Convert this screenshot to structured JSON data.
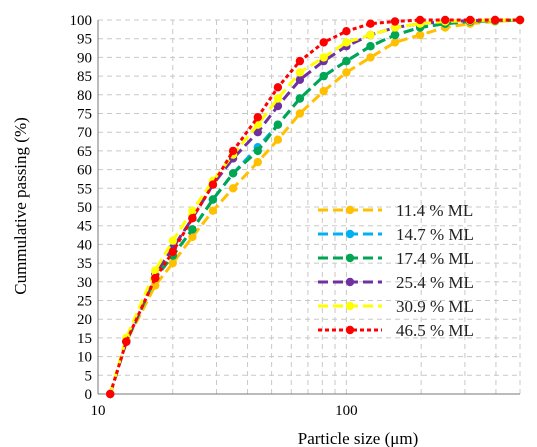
{
  "chart_data": {
    "type": "line",
    "title": "",
    "xlabel": "Particle size (μm)",
    "ylabel": "Cummulative passing (%)",
    "x_scale": "log",
    "xlim": [
      10,
      500
    ],
    "ylim": [
      0,
      100
    ],
    "x_ticks": [
      "10",
      "100"
    ],
    "y_ticks": [
      "0",
      "5",
      "10",
      "15",
      "20",
      "25",
      "30",
      "35",
      "40",
      "45",
      "50",
      "55",
      "60",
      "65",
      "70",
      "75",
      "80",
      "85",
      "90",
      "95",
      "100"
    ],
    "grid": true,
    "legend_position": "right-bottom",
    "series": [
      {
        "name": "11.4 % ML",
        "color": "#FFC000",
        "dash": "dashed",
        "points": [
          [
            11.2,
            0
          ],
          [
            13,
            14
          ],
          [
            17,
            29
          ],
          [
            20,
            35
          ],
          [
            24,
            42
          ],
          [
            29,
            49
          ],
          [
            35,
            55
          ],
          [
            44,
            62
          ],
          [
            53,
            68
          ],
          [
            65,
            75
          ],
          [
            81,
            81
          ],
          [
            100,
            86
          ],
          [
            125,
            90
          ],
          [
            157,
            94
          ],
          [
            198,
            96
          ],
          [
            250,
            98
          ],
          [
            315,
            99
          ],
          [
            397,
            99.6
          ],
          [
            500,
            100
          ]
        ]
      },
      {
        "name": "14.7 % ML",
        "color": "#00B0F0",
        "dash": "dashed",
        "points": [
          [
            11.2,
            0
          ],
          [
            13,
            14
          ],
          [
            17,
            31
          ],
          [
            20,
            37
          ],
          [
            24,
            44
          ],
          [
            29,
            52
          ],
          [
            35,
            59
          ],
          [
            44,
            66
          ],
          [
            53,
            72
          ],
          [
            65,
            79
          ],
          [
            81,
            85
          ],
          [
            100,
            89
          ],
          [
            125,
            93
          ],
          [
            157,
            96
          ],
          [
            198,
            98
          ],
          [
            250,
            99
          ],
          [
            315,
            99.6
          ],
          [
            397,
            99.8
          ],
          [
            500,
            100
          ]
        ]
      },
      {
        "name": "17.4 % ML",
        "color": "#00A651",
        "dash": "dashed",
        "points": [
          [
            11.2,
            0
          ],
          [
            13,
            14
          ],
          [
            17,
            31
          ],
          [
            20,
            37
          ],
          [
            24,
            44
          ],
          [
            29,
            52
          ],
          [
            35,
            59
          ],
          [
            44,
            65
          ],
          [
            53,
            72
          ],
          [
            65,
            79
          ],
          [
            81,
            85
          ],
          [
            100,
            89
          ],
          [
            125,
            93
          ],
          [
            157,
            96
          ],
          [
            198,
            98
          ],
          [
            250,
            99
          ],
          [
            315,
            99.6
          ],
          [
            397,
            99.8
          ],
          [
            500,
            100
          ]
        ]
      },
      {
        "name": "25.4 % ML",
        "color": "#7030A0",
        "dash": "dashed",
        "points": [
          [
            11.2,
            0
          ],
          [
            13,
            14
          ],
          [
            17,
            32
          ],
          [
            20,
            39
          ],
          [
            24,
            47
          ],
          [
            29,
            56
          ],
          [
            35,
            63
          ],
          [
            44,
            70
          ],
          [
            53,
            77
          ],
          [
            65,
            84
          ],
          [
            81,
            89
          ],
          [
            100,
            93
          ],
          [
            125,
            96
          ],
          [
            157,
            98
          ],
          [
            198,
            99
          ],
          [
            250,
            99.6
          ],
          [
            315,
            99.8
          ],
          [
            397,
            100
          ],
          [
            500,
            100
          ]
        ]
      },
      {
        "name": "30.9 % ML",
        "color": "#FFFF00",
        "dash": "dashed",
        "points": [
          [
            11.2,
            0
          ],
          [
            13,
            15
          ],
          [
            17,
            33
          ],
          [
            20,
            41
          ],
          [
            24,
            49
          ],
          [
            29,
            57
          ],
          [
            35,
            64
          ],
          [
            44,
            72
          ],
          [
            53,
            79
          ],
          [
            65,
            86
          ],
          [
            81,
            90
          ],
          [
            100,
            94
          ],
          [
            125,
            96
          ],
          [
            157,
            98
          ],
          [
            198,
            99
          ],
          [
            250,
            99.6
          ],
          [
            315,
            99.8
          ],
          [
            397,
            100
          ],
          [
            500,
            100
          ]
        ]
      },
      {
        "name": "46.5 % ML",
        "color": "#FF0000",
        "dash": "dotted",
        "points": [
          [
            11.2,
            0
          ],
          [
            13,
            14
          ],
          [
            17,
            31
          ],
          [
            20,
            38
          ],
          [
            24,
            47
          ],
          [
            29,
            56
          ],
          [
            35,
            65
          ],
          [
            44,
            74
          ],
          [
            53,
            82
          ],
          [
            65,
            89
          ],
          [
            81,
            94
          ],
          [
            100,
            97
          ],
          [
            125,
            99
          ],
          [
            157,
            99.6
          ],
          [
            198,
            100
          ],
          [
            250,
            100
          ],
          [
            315,
            100
          ],
          [
            397,
            100
          ],
          [
            500,
            100
          ]
        ]
      }
    ]
  }
}
